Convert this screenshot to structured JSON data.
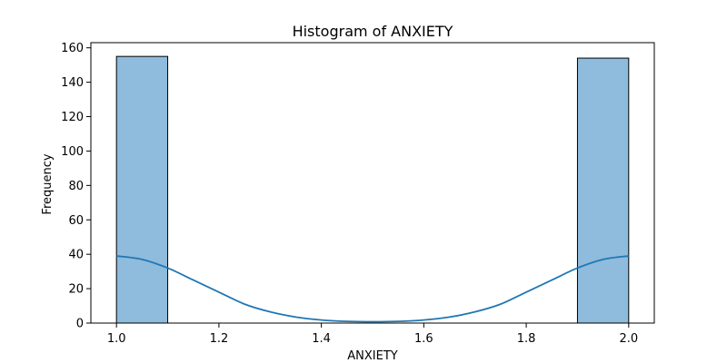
{
  "colors": {
    "bar_fill": "#8fbbdc",
    "bar_edge": "#000000",
    "kde_line": "#1f77b4",
    "axis": "#000000",
    "background": "#ffffff"
  },
  "chart_data": {
    "type": "bar",
    "title": "Histogram of ANXIETY",
    "xlabel": "ANXIETY",
    "ylabel": "Frequency",
    "grid": false,
    "xlim": [
      0.95,
      2.05
    ],
    "ylim": [
      0,
      163
    ],
    "xticks": [
      1.0,
      1.2,
      1.4,
      1.6,
      1.8,
      2.0
    ],
    "xtick_labels": [
      "1.0",
      "1.2",
      "1.4",
      "1.6",
      "1.8",
      "2.0"
    ],
    "yticks": [
      0,
      20,
      40,
      60,
      80,
      100,
      120,
      140,
      160
    ],
    "ytick_labels": [
      "0",
      "20",
      "40",
      "60",
      "80",
      "100",
      "120",
      "140",
      "160"
    ],
    "bins": [
      {
        "x_start": 1.0,
        "x_end": 1.1,
        "value": 155
      },
      {
        "x_start": 1.1,
        "x_end": 1.2,
        "value": 0
      },
      {
        "x_start": 1.2,
        "x_end": 1.3,
        "value": 0
      },
      {
        "x_start": 1.3,
        "x_end": 1.4,
        "value": 0
      },
      {
        "x_start": 1.4,
        "x_end": 1.5,
        "value": 0
      },
      {
        "x_start": 1.5,
        "x_end": 1.6,
        "value": 0
      },
      {
        "x_start": 1.6,
        "x_end": 1.7,
        "value": 0
      },
      {
        "x_start": 1.7,
        "x_end": 1.8,
        "value": 0
      },
      {
        "x_start": 1.8,
        "x_end": 1.9,
        "value": 0
      },
      {
        "x_start": 1.9,
        "x_end": 2.0,
        "value": 154
      }
    ],
    "kde": {
      "x": [
        1.0,
        1.05,
        1.1,
        1.15,
        1.2,
        1.25,
        1.3,
        1.35,
        1.4,
        1.45,
        1.5,
        1.55,
        1.6,
        1.65,
        1.7,
        1.75,
        1.8,
        1.85,
        1.9,
        1.95,
        2.0
      ],
      "y": [
        39,
        37,
        32,
        25,
        18,
        11,
        6.5,
        3.5,
        1.8,
        1.0,
        0.8,
        1.0,
        1.8,
        3.5,
        6.5,
        11,
        18,
        25,
        32,
        37,
        39
      ]
    }
  }
}
